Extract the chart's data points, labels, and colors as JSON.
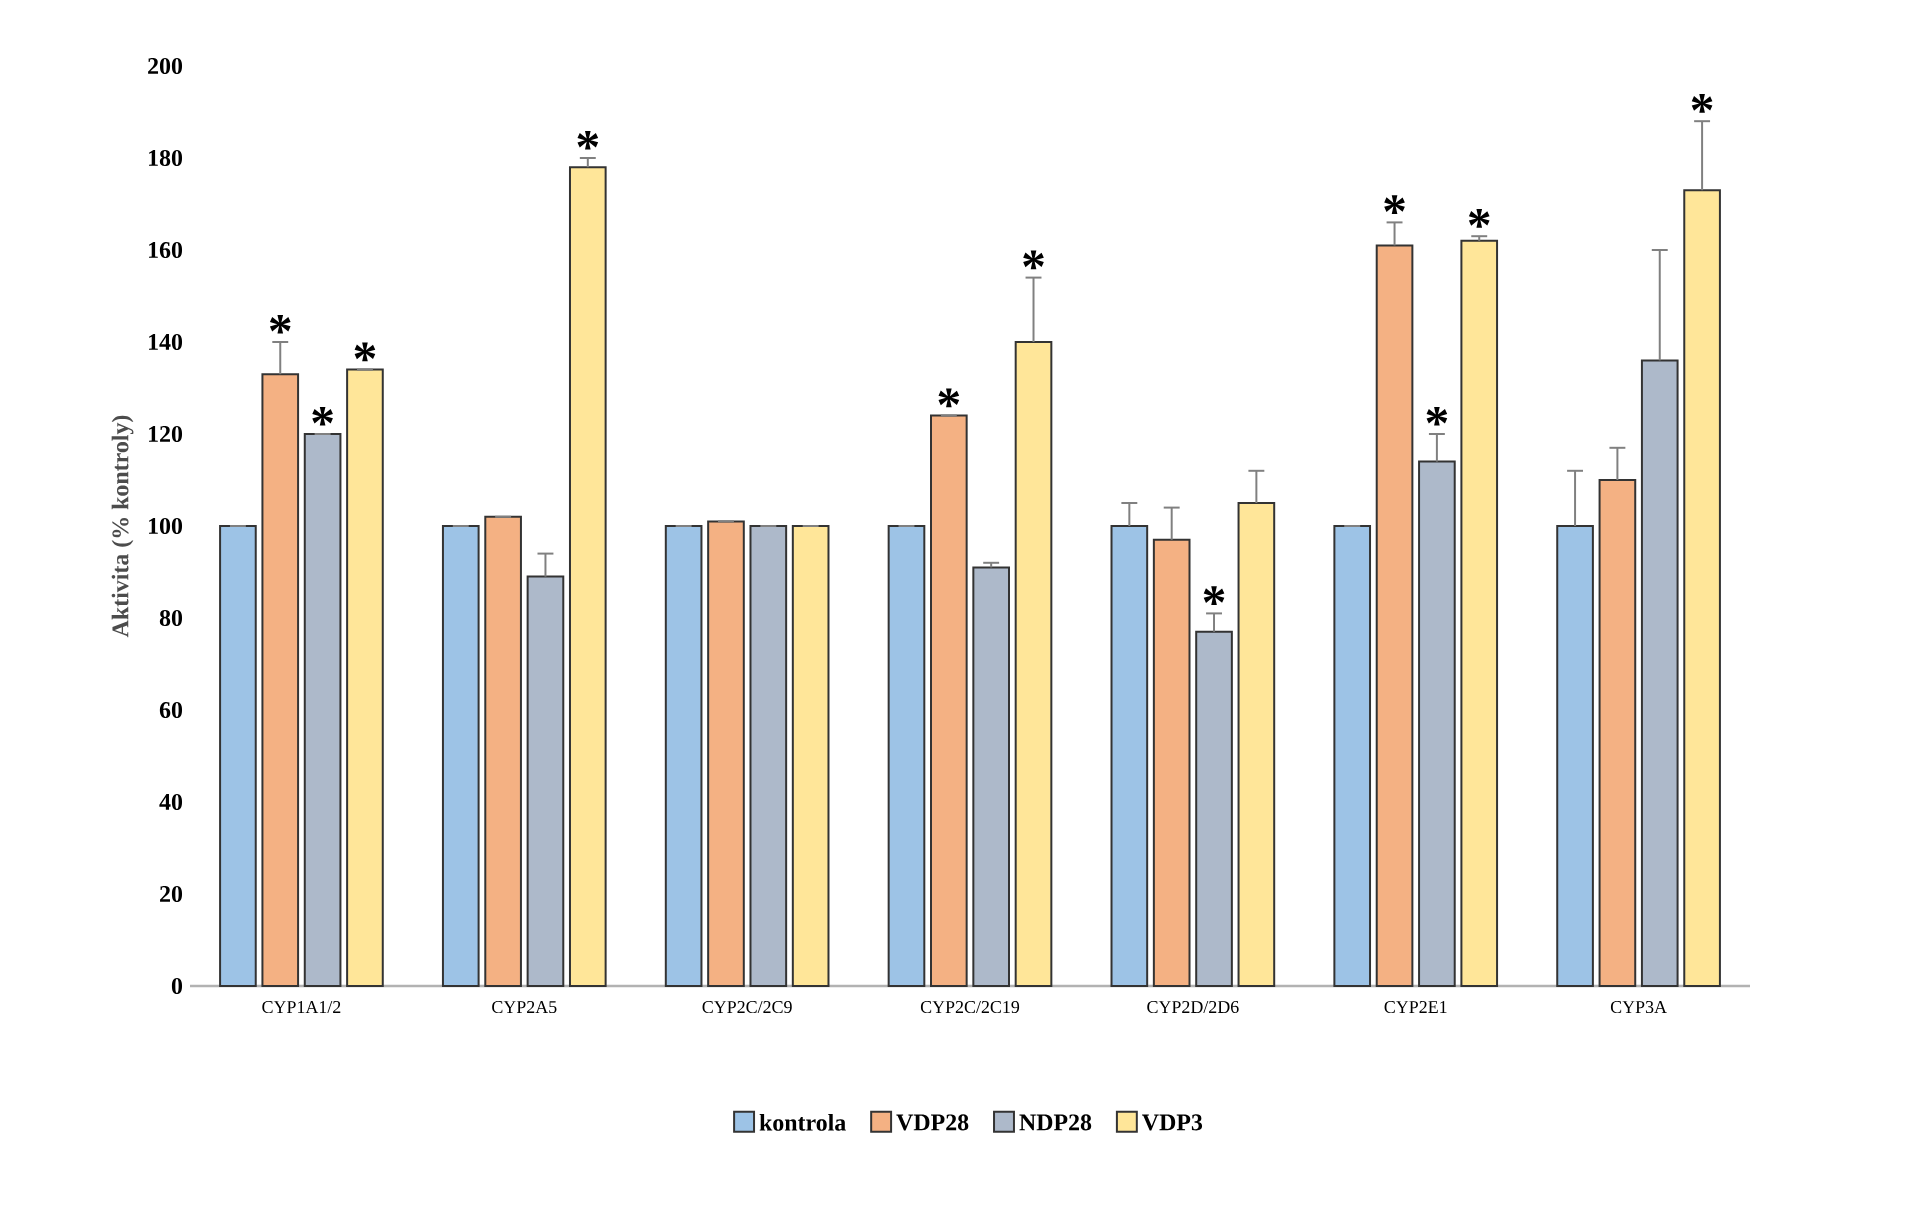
{
  "chart_data": {
    "type": "bar",
    "ylabel": "Aktivita (% kontroly)",
    "categories": [
      "CYP1A1/2",
      "CYP2A5",
      "CYP2C/2C9",
      "CYP2C/2C19",
      "CYP2D/2D6",
      "CYP2E1",
      "CYP3A"
    ],
    "series": [
      {
        "name": "kontrola",
        "color": "#9dc3e6",
        "values": [
          100,
          100,
          100,
          100,
          100,
          100,
          100
        ],
        "errors": [
          null,
          null,
          null,
          null,
          5,
          null,
          12
        ]
      },
      {
        "name": "VDP28",
        "color": "#f4b183",
        "values": [
          133,
          102,
          101,
          124,
          97,
          161,
          110
        ],
        "errors": [
          7,
          null,
          null,
          null,
          7,
          5,
          7
        ],
        "value_labels": [
          "*",
          null,
          null,
          "*",
          null,
          "*",
          null
        ]
      },
      {
        "name": "NDP28",
        "color": "#adb9ca",
        "values": [
          120,
          89,
          100,
          91,
          77,
          114,
          136
        ],
        "errors": [
          null,
          5,
          null,
          1,
          4,
          6,
          24
        ],
        "value_labels": [
          "*",
          null,
          null,
          null,
          "*",
          "*",
          null
        ]
      },
      {
        "name": "VDP3",
        "color": "#ffe699",
        "values": [
          134,
          178,
          100,
          140,
          105,
          162,
          173
        ],
        "errors": [
          null,
          2,
          null,
          14,
          7,
          1,
          15
        ],
        "value_labels": [
          "*",
          "*",
          null,
          "*",
          null,
          "*",
          "*"
        ]
      }
    ],
    "ylim": [
      0,
      200
    ],
    "yticks": [
      0,
      20,
      40,
      60,
      80,
      100,
      120,
      140,
      160,
      180,
      200
    ],
    "legend": "bottom"
  }
}
